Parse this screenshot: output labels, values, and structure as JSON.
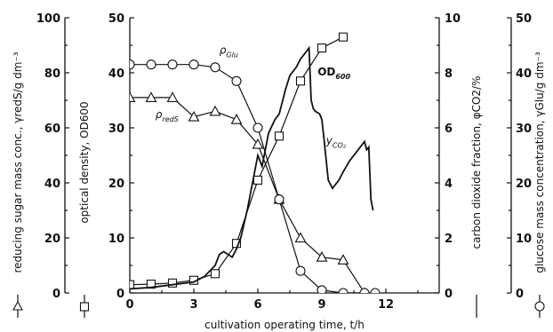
{
  "chart_data": {
    "type": "line",
    "xlabel": "cultivation operating time, t/h",
    "xlim": [
      0,
      14.5
    ],
    "xticks": [
      "0",
      "3",
      "6",
      "9",
      "12"
    ],
    "axes": [
      {
        "id": "reducing_sugar",
        "label": "reducing sugar mass conc., γredS/g dm⁻³",
        "marker": "triangle",
        "ylim": [
          0,
          100
        ],
        "ticks": [
          "0",
          "20",
          "40",
          "60",
          "80",
          "100"
        ]
      },
      {
        "id": "optical_density",
        "label": "optical density, OD600",
        "marker": "square",
        "ylim": [
          0,
          50
        ],
        "ticks": [
          "0",
          "10",
          "20",
          "30",
          "40",
          "50"
        ]
      },
      {
        "id": "co2",
        "label": "carbon dioxide fraction, φCO2/%",
        "marker": "line",
        "ylim": [
          0,
          10
        ],
        "ticks": [
          "0",
          "2",
          "4",
          "6",
          "8",
          "10"
        ]
      },
      {
        "id": "glucose",
        "label": "glucose mass concentration, γGlu/g dm⁻³",
        "marker": "circle",
        "ylim": [
          0,
          50
        ],
        "ticks": [
          "0",
          "10",
          "20",
          "30",
          "40",
          "50"
        ]
      }
    ],
    "series": [
      {
        "name": "γredS",
        "axis": "reducing_sugar",
        "marker": "triangle",
        "x": [
          0,
          1,
          2,
          3,
          4,
          5,
          6,
          7,
          8,
          9,
          10,
          11
        ],
        "y": [
          71,
          71,
          71,
          64,
          66,
          63,
          54,
          34,
          20,
          13,
          12,
          0
        ]
      },
      {
        "name": "OD600",
        "axis": "optical_density",
        "marker": "square",
        "x": [
          0,
          1,
          2,
          3,
          4,
          5,
          6,
          7,
          8,
          9,
          10
        ],
        "y": [
          1.5,
          1.6,
          1.8,
          2.3,
          3.5,
          9.0,
          20.5,
          28.5,
          38.5,
          44.5,
          46.5
        ]
      },
      {
        "name": "yCO2",
        "axis": "co2",
        "marker": "none",
        "x": [
          0,
          1,
          2,
          3,
          3.5,
          4,
          4.2,
          4.4,
          4.8,
          5.0,
          5.2,
          5.5,
          5.8,
          6.0,
          6.2,
          6.5,
          6.8,
          7.0,
          7.3,
          7.5,
          7.8,
          8.0,
          8.2,
          8.4,
          8.5,
          8.6,
          8.7,
          8.9,
          9.0,
          9.1,
          9.3,
          9.5,
          9.8,
          10.0,
          10.3,
          10.6,
          10.9,
          11.0,
          11.1,
          11.2,
          11.3,
          11.4
        ],
        "y": [
          0.15,
          0.2,
          0.3,
          0.4,
          0.6,
          1.0,
          1.4,
          1.5,
          1.3,
          1.6,
          2.0,
          3.0,
          4.2,
          5.0,
          4.6,
          5.8,
          6.3,
          6.5,
          7.4,
          7.9,
          8.2,
          8.5,
          8.7,
          8.9,
          7.0,
          6.7,
          6.6,
          6.5,
          6.3,
          5.6,
          4.1,
          3.8,
          4.1,
          4.4,
          4.8,
          5.1,
          5.4,
          5.5,
          5.2,
          5.3,
          3.4,
          3.0
        ]
      },
      {
        "name": "γGlu",
        "axis": "glucose",
        "marker": "circle",
        "x": [
          0,
          1,
          2,
          3,
          4,
          5,
          6,
          7,
          8,
          9,
          10,
          11,
          11.5
        ],
        "y": [
          41.5,
          41.5,
          41.5,
          41.5,
          41,
          38.5,
          30,
          17,
          4,
          0.5,
          0,
          0,
          0
        ]
      }
    ],
    "annotations": [
      {
        "id": "glu",
        "text": "ρ",
        "sub": "Glu",
        "x": 4.2,
        "y_axis": "glucose",
        "y": 43.5
      },
      {
        "id": "reds",
        "text": "ρ",
        "sub": "redS",
        "x": 1.2,
        "y_axis": "reducing_sugar",
        "y": 63.5
      },
      {
        "id": "co2",
        "text": "y",
        "sub": "CO₂",
        "x": 9.2,
        "y_axis": "co2",
        "y": 5.4
      },
      {
        "id": "od",
        "text": "OD",
        "sub": "600",
        "x": 8.8,
        "y_axis": "optical_density",
        "y": 39.5
      }
    ],
    "grid": false,
    "legend": "none"
  }
}
